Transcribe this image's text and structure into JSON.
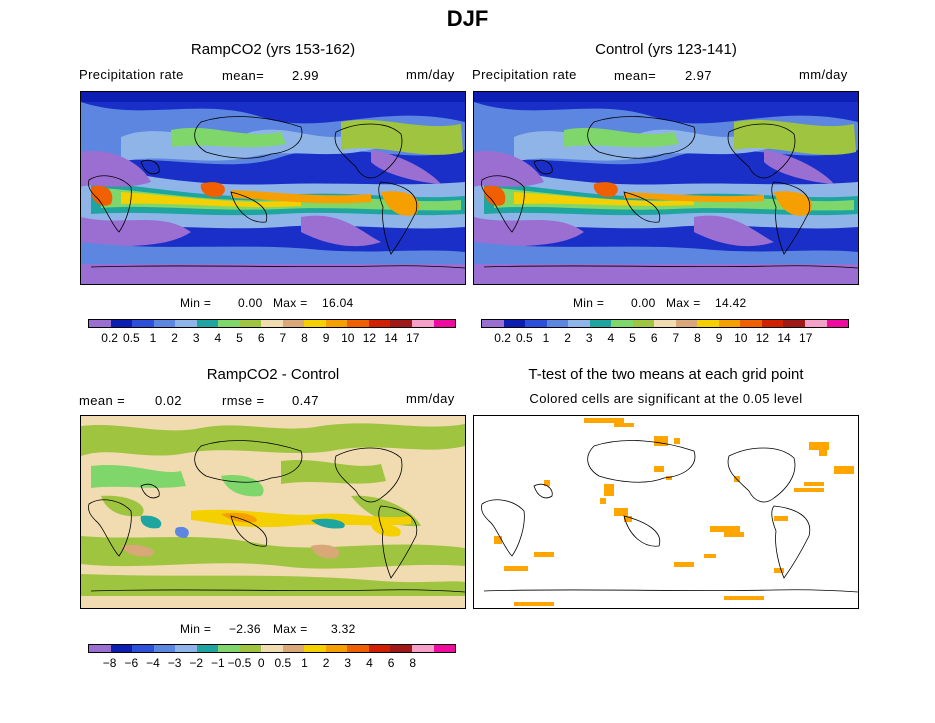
{
  "title": "DJF",
  "units": "mm/day",
  "panels": {
    "p1": {
      "title": "RampCO2 (yrs 153-162)",
      "var": "Precipitation rate",
      "mean_label": "mean=",
      "mean_value": "2.99",
      "units": "mm/day",
      "min_label": "Min =",
      "min_value": "0.00",
      "max_label": "Max =",
      "max_value": "16.04"
    },
    "p2": {
      "title": "Control (yrs 123-141)",
      "var": "Precipitation rate",
      "mean_label": "mean=",
      "mean_value": "2.97",
      "units": "mm/day",
      "min_label": "Min =",
      "min_value": "0.00",
      "max_label": "Max =",
      "max_value": "14.42"
    },
    "p3": {
      "title": "RampCO2 - Control",
      "mean_label": "mean =",
      "mean_value": "0.02",
      "rmse_label": "rmse =",
      "rmse_value": "0.47",
      "units": "mm/day",
      "min_label": "Min =",
      "min_value": "−2.36",
      "max_label": "Max =",
      "max_value": "3.32"
    },
    "p4": {
      "title": "T-test of the two means at each grid point",
      "subtitle": "Colored cells are significant at the 0.05 level"
    }
  },
  "precip_colorbar": {
    "colors": [
      "#9b6fd1",
      "#0d1fb2",
      "#2e4fd9",
      "#5c86e0",
      "#8fb5e8",
      "#1fa5a0",
      "#7fd66b",
      "#9fc440",
      "#f0dcb0",
      "#d9a878",
      "#f5d000",
      "#f5a000",
      "#f06000",
      "#d02000",
      "#a01818",
      "#f5a0c8",
      "#f00aa0"
    ],
    "ticks": [
      "0.2",
      "0.5",
      "1",
      "2",
      "3",
      "4",
      "5",
      "6",
      "7",
      "8",
      "9",
      "10",
      "12",
      "14",
      "17"
    ]
  },
  "diff_colorbar": {
    "colors": [
      "#9b6fd1",
      "#0d1fb2",
      "#2e4fd9",
      "#5c86e0",
      "#8fb5e8",
      "#1fa5a0",
      "#7fd66b",
      "#9fc440",
      "#f0dcb0",
      "#d9a878",
      "#f5d000",
      "#f5a000",
      "#f06000",
      "#d02000",
      "#a01818",
      "#f5a0c8",
      "#f00aa0"
    ],
    "ticks": [
      "−8",
      "−6",
      "−4",
      "−3",
      "−2",
      "−1",
      "−0.5",
      "0",
      "0.5",
      "1",
      "2",
      "3",
      "4",
      "6",
      "8"
    ]
  },
  "ttest_color": "#ffa500"
}
